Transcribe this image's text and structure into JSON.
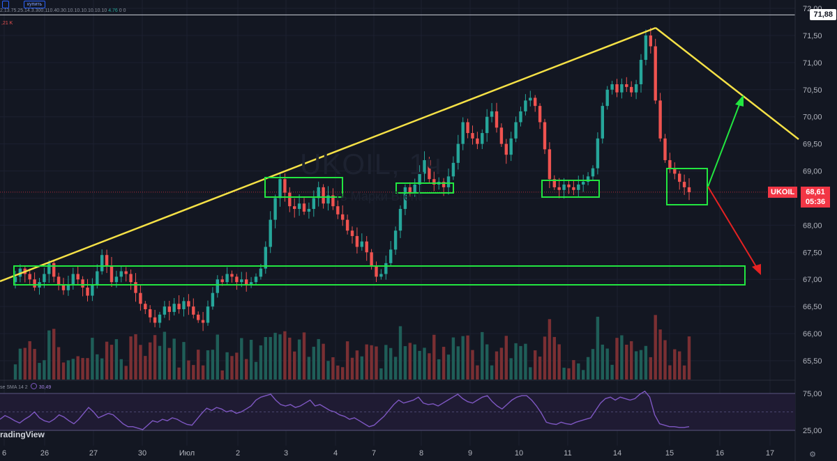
{
  "chart_data": {
    "type": "candlestick",
    "symbol": "UKOIL",
    "interval": "1h",
    "watermark": "UKOIL, 1ч",
    "watermark_sub": "ть Марки Brent",
    "ohlc_header": "2.13.75.25.14.3.300.110.40.30.10.10.10.10.10.10",
    "ohlc_change": "4.76",
    "ohlc_tail": "0 0",
    "volume_label": ",21 K",
    "top_buttons": [
      "",
      "купить"
    ],
    "price_axis": {
      "labels": [
        "72,00",
        "71,50",
        "71,00",
        "70,50",
        "70,00",
        "69,50",
        "69,00",
        "68,50",
        "68,00",
        "67,50",
        "67,00",
        "66,50",
        "66,00",
        "65,50"
      ],
      "values": [
        72.0,
        71.5,
        71.0,
        70.5,
        70.0,
        69.5,
        69.0,
        68.5,
        68.0,
        67.5,
        67.0,
        66.5,
        66.0,
        65.5
      ],
      "ylim": [
        65.4,
        72.05
      ]
    },
    "time_axis": {
      "labels": [
        "6",
        "26",
        "27",
        "30",
        "Июл",
        "2",
        "3",
        "4",
        "7",
        "8",
        "9",
        "10",
        "11",
        "14",
        "15",
        "16",
        "17"
      ]
    },
    "reference_price": "71,88",
    "reference_price_value": 71.88,
    "last_price": "68,61",
    "last_price_value": 68.61,
    "countdown": "05:36",
    "closes": [
      67.05,
      67.2,
      67.1,
      67.0,
      66.85,
      66.95,
      67.1,
      67.3,
      67.05,
      66.9,
      66.8,
      66.9,
      67.1,
      67.0,
      66.85,
      66.7,
      66.9,
      67.15,
      67.45,
      67.25,
      66.95,
      67.05,
      67.15,
      67.1,
      66.95,
      66.75,
      66.55,
      66.45,
      66.3,
      66.2,
      66.35,
      66.5,
      66.4,
      66.55,
      66.45,
      66.6,
      66.5,
      66.35,
      66.25,
      66.2,
      66.5,
      66.75,
      67.0,
      66.95,
      67.1,
      67.05,
      66.95,
      67.0,
      66.9,
      66.95,
      67.05,
      67.2,
      67.6,
      68.1,
      68.5,
      68.85,
      68.6,
      68.35,
      68.3,
      68.4,
      68.25,
      68.3,
      68.5,
      68.7,
      68.4,
      68.55,
      68.35,
      68.2,
      68.1,
      67.9,
      67.8,
      67.6,
      67.7,
      67.5,
      67.25,
      67.05,
      67.1,
      67.3,
      67.55,
      67.9,
      68.3,
      68.7,
      68.6,
      68.75,
      68.95,
      69.2,
      68.85,
      68.75,
      68.8,
      68.7,
      68.9,
      69.15,
      69.5,
      69.9,
      69.7,
      69.6,
      69.5,
      69.7,
      70.0,
      70.1,
      69.8,
      69.5,
      69.3,
      69.6,
      69.9,
      70.1,
      70.3,
      70.35,
      70.2,
      69.9,
      69.4,
      68.85,
      68.7,
      68.65,
      68.75,
      68.7,
      68.65,
      68.75,
      68.8,
      68.9,
      69.05,
      69.6,
      70.2,
      70.5,
      70.6,
      70.45,
      70.6,
      70.55,
      70.45,
      70.6,
      71.05,
      71.5,
      71.3,
      70.3,
      69.6,
      69.2,
      69.05,
      68.95,
      68.8,
      68.7,
      68.61
    ],
    "annotations": {
      "trendlines": [
        "yellow-ascending",
        "yellow-descending"
      ],
      "boxes": [
        "support-zone",
        "resistance-box-1",
        "resistance-box-2",
        "resistance-box-3",
        "current-box"
      ],
      "arrows": [
        "green-up",
        "red-down"
      ]
    },
    "rsi": {
      "label": "se SMA 14 2",
      "value": "30,49",
      "axis_labels": [
        "75,00",
        "25,00"
      ],
      "axis_values": [
        75,
        25
      ],
      "values": [
        40,
        45,
        42,
        38,
        35,
        40,
        44,
        50,
        42,
        38,
        36,
        40,
        46,
        43,
        38,
        34,
        40,
        48,
        56,
        50,
        42,
        45,
        48,
        46,
        40,
        34,
        30,
        30,
        28,
        26,
        32,
        38,
        36,
        40,
        38,
        42,
        40,
        36,
        33,
        32,
        40,
        48,
        55,
        52,
        56,
        54,
        50,
        52,
        48,
        50,
        54,
        58,
        66,
        70,
        72,
        74,
        66,
        60,
        58,
        60,
        56,
        58,
        62,
        66,
        58,
        60,
        56,
        52,
        50,
        46,
        44,
        40,
        42,
        38,
        34,
        30,
        32,
        38,
        44,
        52,
        60,
        66,
        62,
        64,
        66,
        70,
        62,
        60,
        61,
        58,
        62,
        66,
        70,
        74,
        68,
        64,
        62,
        66,
        70,
        72,
        64,
        58,
        54,
        60,
        66,
        70,
        72,
        72,
        66,
        58,
        48,
        36,
        34,
        33,
        36,
        34,
        33,
        36,
        38,
        40,
        42,
        52,
        62,
        68,
        70,
        66,
        70,
        68,
        66,
        68,
        74,
        78,
        70,
        46,
        34,
        32,
        30,
        30,
        29,
        29,
        30
      ]
    },
    "brand": "radingView"
  }
}
